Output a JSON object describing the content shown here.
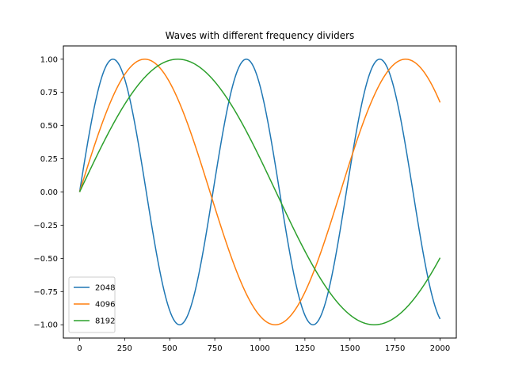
{
  "chart_data": {
    "type": "line",
    "title": "Waves with different frequency dividers",
    "xlabel": "",
    "ylabel": "",
    "xlim": [
      -90,
      2090
    ],
    "ylim": [
      -1.1,
      1.1
    ],
    "xticks": [
      0,
      250,
      500,
      750,
      1000,
      1250,
      1500,
      1750,
      2000
    ],
    "yticks": [
      -1.0,
      -0.75,
      -0.5,
      -0.25,
      0.0,
      0.25,
      0.5,
      0.75,
      1.0
    ],
    "xtick_labels": [
      "0",
      "250",
      "500",
      "750",
      "1000",
      "1250",
      "1500",
      "1750",
      "2000"
    ],
    "ytick_labels": [
      "−1.00",
      "−0.75",
      "−0.50",
      "−0.25",
      "0.00",
      "0.25",
      "0.50",
      "0.75",
      "1.00"
    ],
    "grid": false,
    "legend_position": "lower-left",
    "series": [
      {
        "name": "2048",
        "color": "#1f77b4",
        "period": 740,
        "phase": 0.0
      },
      {
        "name": "4096",
        "color": "#ff7f0e",
        "period": 1447,
        "phase": 0.0
      },
      {
        "name": "8192",
        "color": "#2ca02c",
        "period": 2180,
        "phase": 0.0
      }
    ],
    "x_range": [
      0,
      2000
    ]
  }
}
